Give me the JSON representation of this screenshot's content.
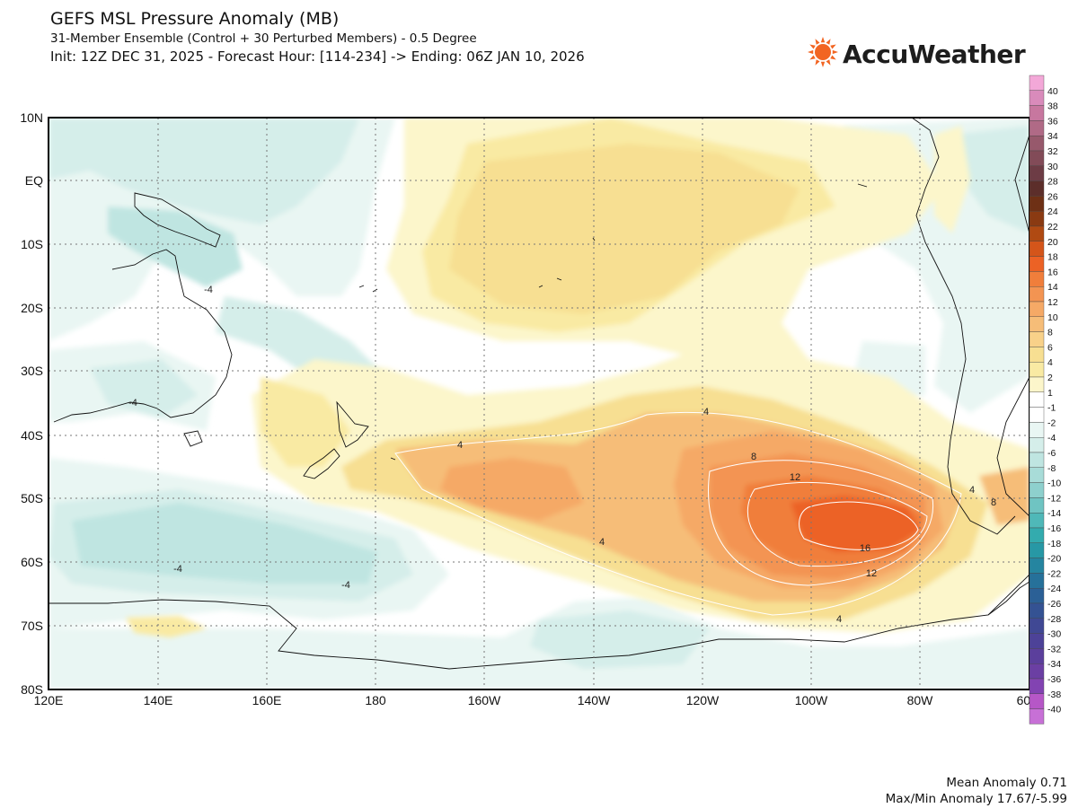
{
  "header": {
    "title": "GEFS MSL Pressure Anomaly (MB)",
    "subtitle": "31-Member Ensemble (Control + 30 Perturbed Members) - 0.5 Degree",
    "init_line": "Init: 12Z DEC 31, 2025 - Forecast Hour: [114-234] -> Ending: 06Z JAN 10, 2026"
  },
  "logo": {
    "text": "AccuWeather",
    "icon": "sun-icon",
    "color": "#f26522"
  },
  "map": {
    "lat_labels": [
      "10N",
      "EQ",
      "10S",
      "20S",
      "30S",
      "40S",
      "50S",
      "60S",
      "70S",
      "80S"
    ],
    "lon_labels": [
      "120E",
      "140E",
      "160E",
      "180",
      "160W",
      "140W",
      "120W",
      "100W",
      "80W",
      "60W"
    ],
    "contour_labels": [
      "-4",
      "-4",
      "-4",
      "-4",
      "4",
      "4",
      "4",
      "4",
      "8",
      "8",
      "12",
      "12",
      "16",
      "4",
      "4"
    ]
  },
  "colorbar": {
    "levels": [
      "40",
      "38",
      "36",
      "34",
      "32",
      "30",
      "28",
      "26",
      "24",
      "22",
      "20",
      "18",
      "16",
      "14",
      "12",
      "10",
      "8",
      "6",
      "4",
      "2",
      "1",
      "-1",
      "-2",
      "-4",
      "-6",
      "-8",
      "-10",
      "-12",
      "-14",
      "-16",
      "-18",
      "-20",
      "-22",
      "-24",
      "-26",
      "-28",
      "-30",
      "-32",
      "-34",
      "-36",
      "-38",
      "-40"
    ],
    "colors": [
      "#f3a8d8",
      "#d98bbb",
      "#c7779f",
      "#b06a86",
      "#97596c",
      "#824b58",
      "#6d3c45",
      "#5c2e2a",
      "#6e3015",
      "#8a3a12",
      "#b04a12",
      "#d4551a",
      "#ec6225",
      "#f07e3b",
      "#f39452",
      "#f5a966",
      "#f6bd78",
      "#f8d189",
      "#f7df92",
      "#f9eaa3",
      "#fcf6cb",
      "#ffffff",
      "#ffffff",
      "#e9f6f3",
      "#d5eeea",
      "#bfe5e1",
      "#a8dcd8",
      "#8ed0cd",
      "#6fc4c2",
      "#4fb8b8",
      "#33abae",
      "#2798a5",
      "#2585a0",
      "#26719a",
      "#2b6096",
      "#345293",
      "#404894",
      "#4d4298",
      "#5b3f9c",
      "#6b3fa3",
      "#8243b2",
      "#b657c7",
      "#c770d6"
    ]
  },
  "stats": {
    "mean": "Mean Anomaly 0.71",
    "maxmin": "Max/Min Anomaly 17.67/-5.99"
  }
}
